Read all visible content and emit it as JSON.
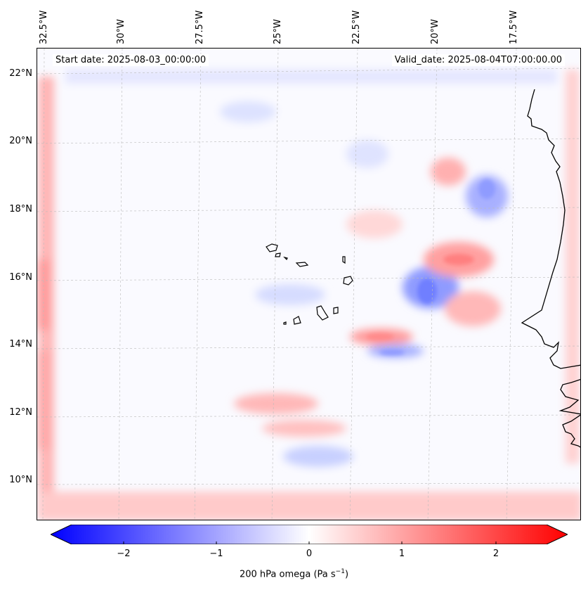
{
  "header": {
    "start_date": "Start date: 2025-08-03_00:00:00",
    "valid_date": "Valid_date: 2025-08-04T07:00:00.00"
  },
  "map": {
    "longitude_labels": [
      "32.5°W",
      "30°W",
      "27.5°W",
      "25°W",
      "22.5°W",
      "20°W",
      "17.5°W"
    ],
    "latitude_labels": [
      "22°N",
      "20°N",
      "18°N",
      "16°N",
      "14°N",
      "12°N",
      "10°N"
    ]
  },
  "colorbar": {
    "label_prefix": "200 hPa omega (Pa s",
    "label_exponent": "−1",
    "label_suffix": ")",
    "ticks": [
      "−2",
      "−1",
      "0",
      "1",
      "2"
    ],
    "colors": {
      "min": "#0000ff",
      "mid": "#ffffff",
      "max": "#ff0000"
    }
  }
}
